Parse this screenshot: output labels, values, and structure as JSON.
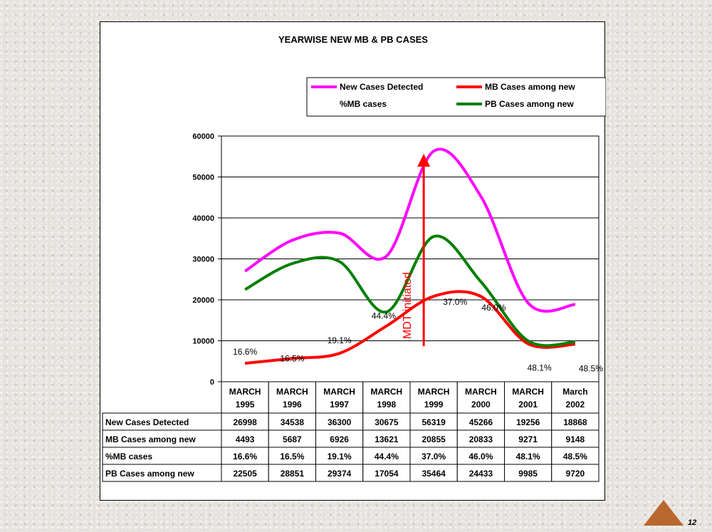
{
  "page": {
    "number": "12",
    "accent_color": "#b8672e"
  },
  "chart_data": {
    "type": "line",
    "title": "YEARWISE NEW MB & PB CASES",
    "categories": [
      [
        "MARCH",
        "1995"
      ],
      [
        "MARCH",
        "1996"
      ],
      [
        "MARCH",
        "1997"
      ],
      [
        "MARCH",
        "1998"
      ],
      [
        "MARCH",
        "1999"
      ],
      [
        "MARCH",
        "2000"
      ],
      [
        "MARCH",
        "2001"
      ],
      [
        "March",
        "2002"
      ]
    ],
    "ylim": [
      0,
      60000
    ],
    "yticks": [
      "0",
      "10000",
      "20000",
      "30000",
      "40000",
      "50000",
      "60000"
    ],
    "grid": true,
    "legend_position": "top-right",
    "series": [
      {
        "name": "New Cases Detected",
        "color": "#ff00ff",
        "values": [
          26998,
          34538,
          36300,
          30675,
          56319,
          45266,
          19256,
          18868
        ]
      },
      {
        "name": "MB Cases among new",
        "color": "#ff0000",
        "values": [
          4493,
          5687,
          6926,
          13621,
          20855,
          20833,
          9271,
          9148
        ]
      },
      {
        "name": "%MB cases",
        "color": "none",
        "values": [
          16.6,
          16.5,
          19.1,
          44.4,
          37.0,
          46.0,
          48.1,
          48.5
        ],
        "labels": [
          "16.6%",
          "16.5%",
          "19.1%",
          "44.4%",
          "37.0%",
          "46.0%",
          "48.1%",
          "48.5%"
        ]
      },
      {
        "name": "PB Cases among new",
        "color": "#008000",
        "values": [
          22505,
          28851,
          29374,
          17054,
          35464,
          24433,
          9985,
          9720
        ]
      }
    ],
    "annotation": {
      "text": "MDT initiated",
      "color": "#ff0000",
      "category_index": 4
    },
    "table": {
      "rows": [
        {
          "label": "New Cases Detected",
          "cells": [
            "26998",
            "34538",
            "36300",
            "30675",
            "56319",
            "45266",
            "19256",
            "18868"
          ]
        },
        {
          "label": "MB Cases among new",
          "cells": [
            "4493",
            "5687",
            "6926",
            "13621",
            "20855",
            "20833",
            "9271",
            "9148"
          ]
        },
        {
          "label": "%MB cases",
          "cells": [
            "16.6%",
            "16.5%",
            "19.1%",
            "44.4%",
            "37.0%",
            "46.0%",
            "48.1%",
            "48.5%"
          ]
        },
        {
          "label": "PB Cases among new",
          "cells": [
            "22505",
            "28851",
            "29374",
            "17054",
            "35464",
            "24433",
            "9985",
            "9720"
          ]
        }
      ]
    }
  }
}
